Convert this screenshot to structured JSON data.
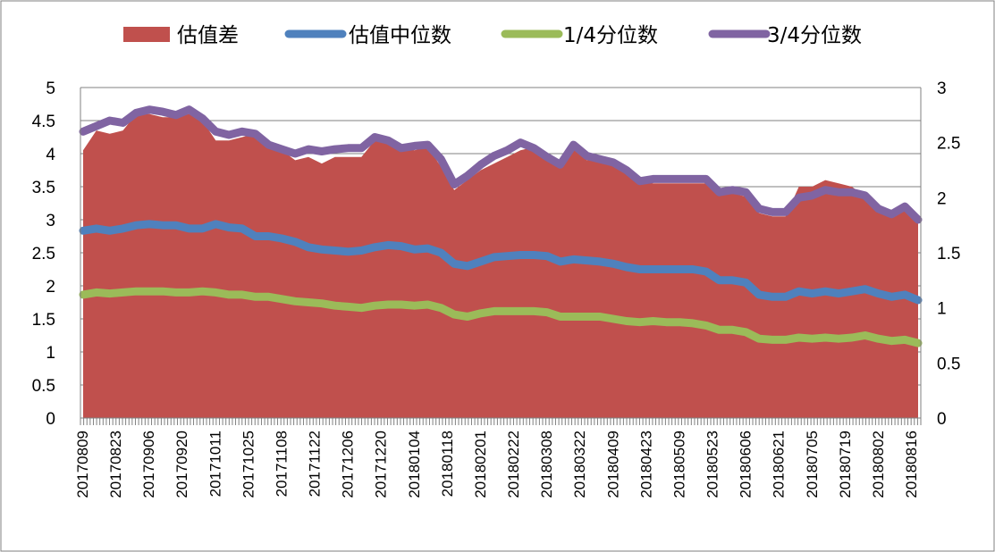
{
  "chart_data": {
    "type": "area",
    "title": "",
    "xlabel": "",
    "ylabel": "",
    "y2label": "",
    "ylim": [
      0,
      5
    ],
    "y2lim": [
      0,
      3
    ],
    "yticks": [
      "0",
      "0.5",
      "1",
      "1.5",
      "2",
      "2.5",
      "3",
      "3.5",
      "4",
      "4.5",
      "5"
    ],
    "y2ticks": [
      "0",
      "0.5",
      "1",
      "1.5",
      "2",
      "2.5",
      "3"
    ],
    "grid": true,
    "legend_position": "top",
    "x_labels": [
      "20170809",
      "20170823",
      "20170906",
      "20170920",
      "20171011",
      "20171025",
      "20171108",
      "20171122",
      "20171206",
      "20171220",
      "20180104",
      "20180118",
      "20180201",
      "20180222",
      "20180308",
      "20180322",
      "20180409",
      "20180423",
      "20180509",
      "20180523",
      "20180606",
      "20180621",
      "20180705",
      "20180719",
      "20180802",
      "20180816"
    ],
    "series": [
      {
        "name": "估值差",
        "kind": "area",
        "axis": "left",
        "color": "#c0504d",
        "values": [
          4.05,
          4.35,
          4.3,
          4.35,
          4.6,
          4.6,
          4.55,
          4.55,
          4.6,
          4.5,
          4.2,
          4.2,
          4.25,
          4.3,
          4.15,
          4.05,
          3.9,
          3.95,
          3.85,
          3.95,
          3.95,
          3.95,
          4.2,
          4.15,
          4.1,
          4.05,
          4.1,
          3.8,
          3.45,
          3.6,
          3.75,
          3.85,
          3.95,
          4.05,
          4.1,
          4.0,
          3.85,
          4.1,
          3.9,
          3.95,
          3.85,
          3.75,
          3.6,
          3.55,
          3.55,
          3.55,
          3.55,
          3.55,
          3.4,
          3.4,
          3.35,
          3.1,
          3.05,
          3.05,
          3.5,
          3.5,
          3.6,
          3.55,
          3.5,
          3.35,
          3.2,
          3.15,
          3.2,
          3.05
        ]
      },
      {
        "name": "估值中位数",
        "kind": "line",
        "axis": "right",
        "color": "#4f81bd",
        "values": [
          1.7,
          1.72,
          1.7,
          1.72,
          1.75,
          1.76,
          1.75,
          1.75,
          1.72,
          1.72,
          1.76,
          1.73,
          1.72,
          1.65,
          1.65,
          1.63,
          1.6,
          1.55,
          1.53,
          1.52,
          1.51,
          1.52,
          1.55,
          1.57,
          1.56,
          1.53,
          1.54,
          1.5,
          1.4,
          1.38,
          1.42,
          1.46,
          1.47,
          1.48,
          1.48,
          1.47,
          1.42,
          1.44,
          1.43,
          1.42,
          1.4,
          1.37,
          1.35,
          1.35,
          1.35,
          1.35,
          1.35,
          1.33,
          1.25,
          1.25,
          1.23,
          1.12,
          1.1,
          1.1,
          1.15,
          1.13,
          1.15,
          1.13,
          1.15,
          1.17,
          1.13,
          1.1,
          1.12,
          1.07
        ]
      },
      {
        "name": "1/4分位数",
        "kind": "line",
        "axis": "right",
        "color": "#9bbb59",
        "values": [
          1.12,
          1.14,
          1.13,
          1.14,
          1.15,
          1.15,
          1.15,
          1.14,
          1.14,
          1.15,
          1.14,
          1.12,
          1.12,
          1.1,
          1.1,
          1.08,
          1.06,
          1.05,
          1.04,
          1.02,
          1.01,
          1.0,
          1.02,
          1.03,
          1.03,
          1.02,
          1.03,
          1.0,
          0.94,
          0.92,
          0.95,
          0.97,
          0.97,
          0.97,
          0.97,
          0.96,
          0.92,
          0.92,
          0.92,
          0.92,
          0.9,
          0.88,
          0.87,
          0.88,
          0.87,
          0.87,
          0.86,
          0.84,
          0.8,
          0.8,
          0.78,
          0.72,
          0.71,
          0.71,
          0.73,
          0.72,
          0.73,
          0.72,
          0.73,
          0.75,
          0.72,
          0.7,
          0.71,
          0.68
        ]
      },
      {
        "name": "3/4分位数",
        "kind": "line",
        "axis": "right",
        "color": "#8064a2",
        "values": [
          2.6,
          2.65,
          2.7,
          2.68,
          2.77,
          2.8,
          2.78,
          2.75,
          2.8,
          2.72,
          2.6,
          2.57,
          2.6,
          2.58,
          2.48,
          2.44,
          2.4,
          2.44,
          2.42,
          2.44,
          2.45,
          2.45,
          2.55,
          2.52,
          2.45,
          2.47,
          2.48,
          2.35,
          2.12,
          2.2,
          2.3,
          2.38,
          2.43,
          2.5,
          2.45,
          2.37,
          2.3,
          2.48,
          2.38,
          2.35,
          2.32,
          2.25,
          2.15,
          2.17,
          2.17,
          2.17,
          2.17,
          2.17,
          2.05,
          2.07,
          2.05,
          1.9,
          1.87,
          1.87,
          2.0,
          2.02,
          2.07,
          2.05,
          2.05,
          2.02,
          1.9,
          1.85,
          1.92,
          1.8
        ]
      }
    ]
  },
  "colors": {
    "border": "#808080",
    "grid": "#808080"
  }
}
